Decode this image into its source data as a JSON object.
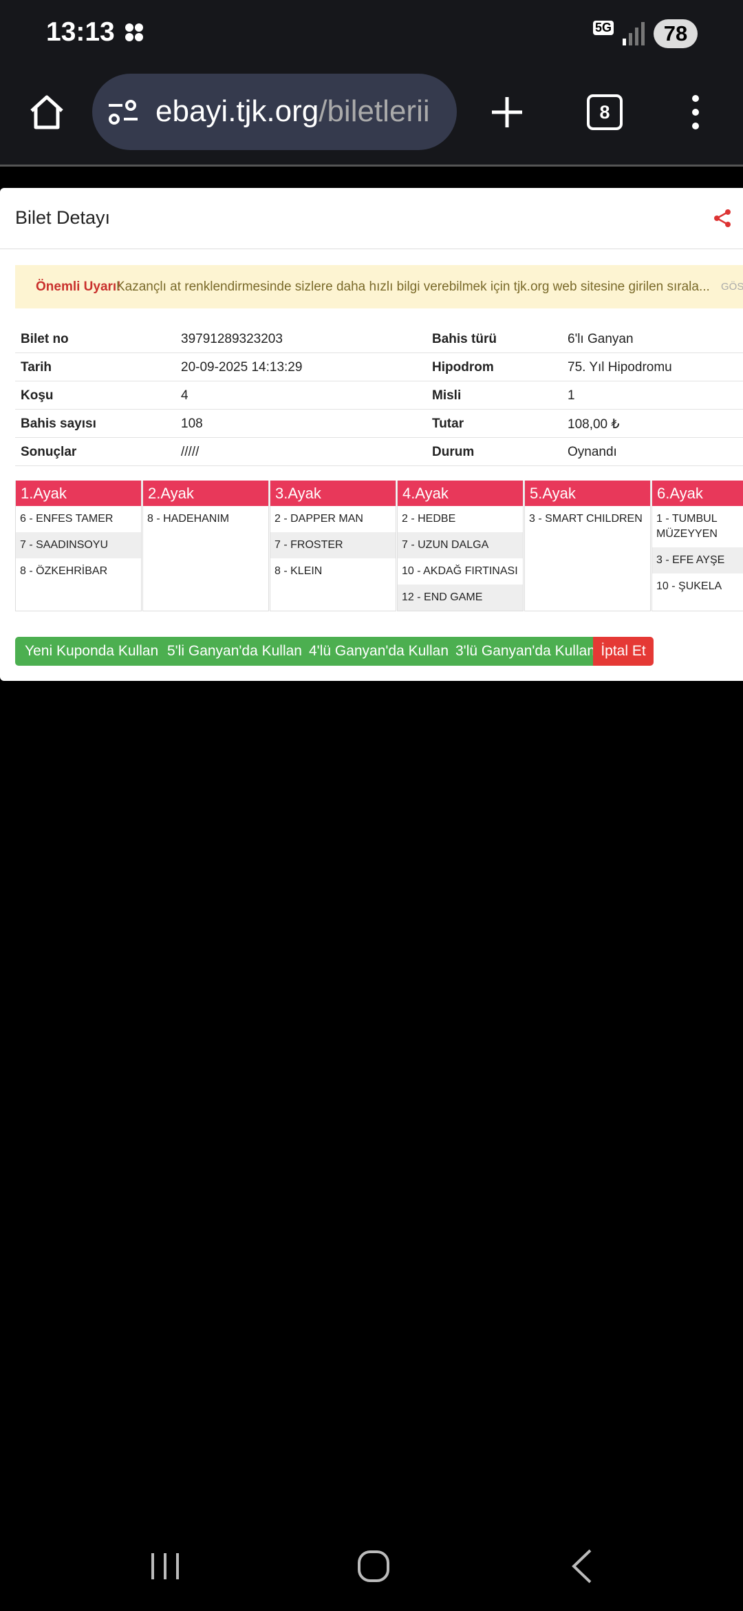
{
  "status_bar": {
    "time": "13:13",
    "network": "5G",
    "battery": "78"
  },
  "browser": {
    "url_domain": "ebayi.tjk.org",
    "url_path": "/biletlerii",
    "tab_count": "8"
  },
  "modal": {
    "title": "Bilet Detayı",
    "warning": {
      "label": "Önemli Uyarı!",
      "text": "Kazançlı at renklendirmesinde sizlere daha hızlı bilgi verebilmek için tjk.org web sitesine girilen sırala...",
      "more": "GÖST"
    },
    "details": [
      [
        "Bilet no",
        "39791289323203",
        "Bahis türü",
        "6'lı Ganyan"
      ],
      [
        "Tarih",
        "20-09-2025 14:13:29",
        "Hipodrom",
        "75. Yıl Hipodromu"
      ],
      [
        "Koşu",
        "4",
        "Misli",
        "1"
      ],
      [
        "Bahis sayısı",
        "108",
        "Tutar",
        "108,00 ₺"
      ],
      [
        "Sonuçlar",
        "/////",
        "Durum",
        "Oynandı"
      ]
    ],
    "legs": [
      {
        "title": "1.Ayak",
        "horses": [
          "6 - ENFES TAMER",
          "7 - SAADINSOYU",
          "8 - ÖZKEHRİBAR"
        ]
      },
      {
        "title": "2.Ayak",
        "horses": [
          "8 - HADEHANIM"
        ]
      },
      {
        "title": "3.Ayak",
        "horses": [
          "2 - DAPPER MAN",
          "7 - FROSTER",
          "8 - KLEIN"
        ]
      },
      {
        "title": "4.Ayak",
        "horses": [
          "2 - HEDBE",
          "7 - UZUN DALGA",
          "10 - AKDAĞ FIRTINASI",
          "12 - END GAME"
        ]
      },
      {
        "title": "5.Ayak",
        "horses": [
          "3 - SMART CHILDREN"
        ]
      },
      {
        "title": "6.Ayak",
        "horses": [
          "1 - TUMBUL MÜZEYYEN",
          "3 - EFE AYŞE",
          "10 - ŞUKELA"
        ]
      }
    ],
    "buttons": [
      "Yeni Kuponda Kullan",
      "5'li Ganyan'da Kullan",
      "4'lü Ganyan'da Kullan",
      "3'lü Ganyan'da Kullan"
    ],
    "cancel_button": "İptal Et"
  }
}
